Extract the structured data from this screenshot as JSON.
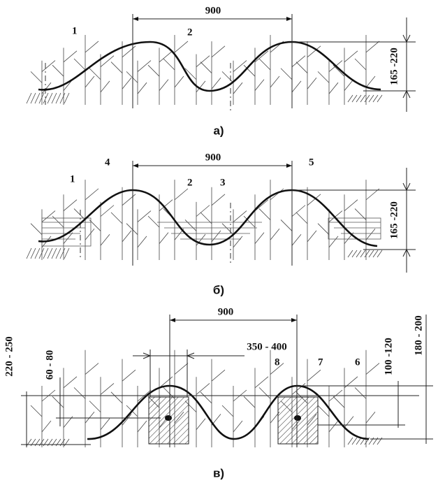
{
  "panels": [
    {
      "caption": "а)",
      "dimension": "900",
      "height": "165 -220",
      "callouts": [
        "1",
        "2"
      ]
    },
    {
      "caption": "б)",
      "dimension": "900",
      "height": "165 -220",
      "callouts": [
        "4",
        "1",
        "2",
        "3",
        "5"
      ]
    },
    {
      "caption": "в)",
      "dimension": "900",
      "width": "350 - 400",
      "left_total": "220 - 250",
      "left_depth": "60 - 80",
      "callouts": [
        "8",
        "7",
        "6"
      ],
      "right_inner": "100 -120",
      "right_total": "180 - 200"
    }
  ]
}
